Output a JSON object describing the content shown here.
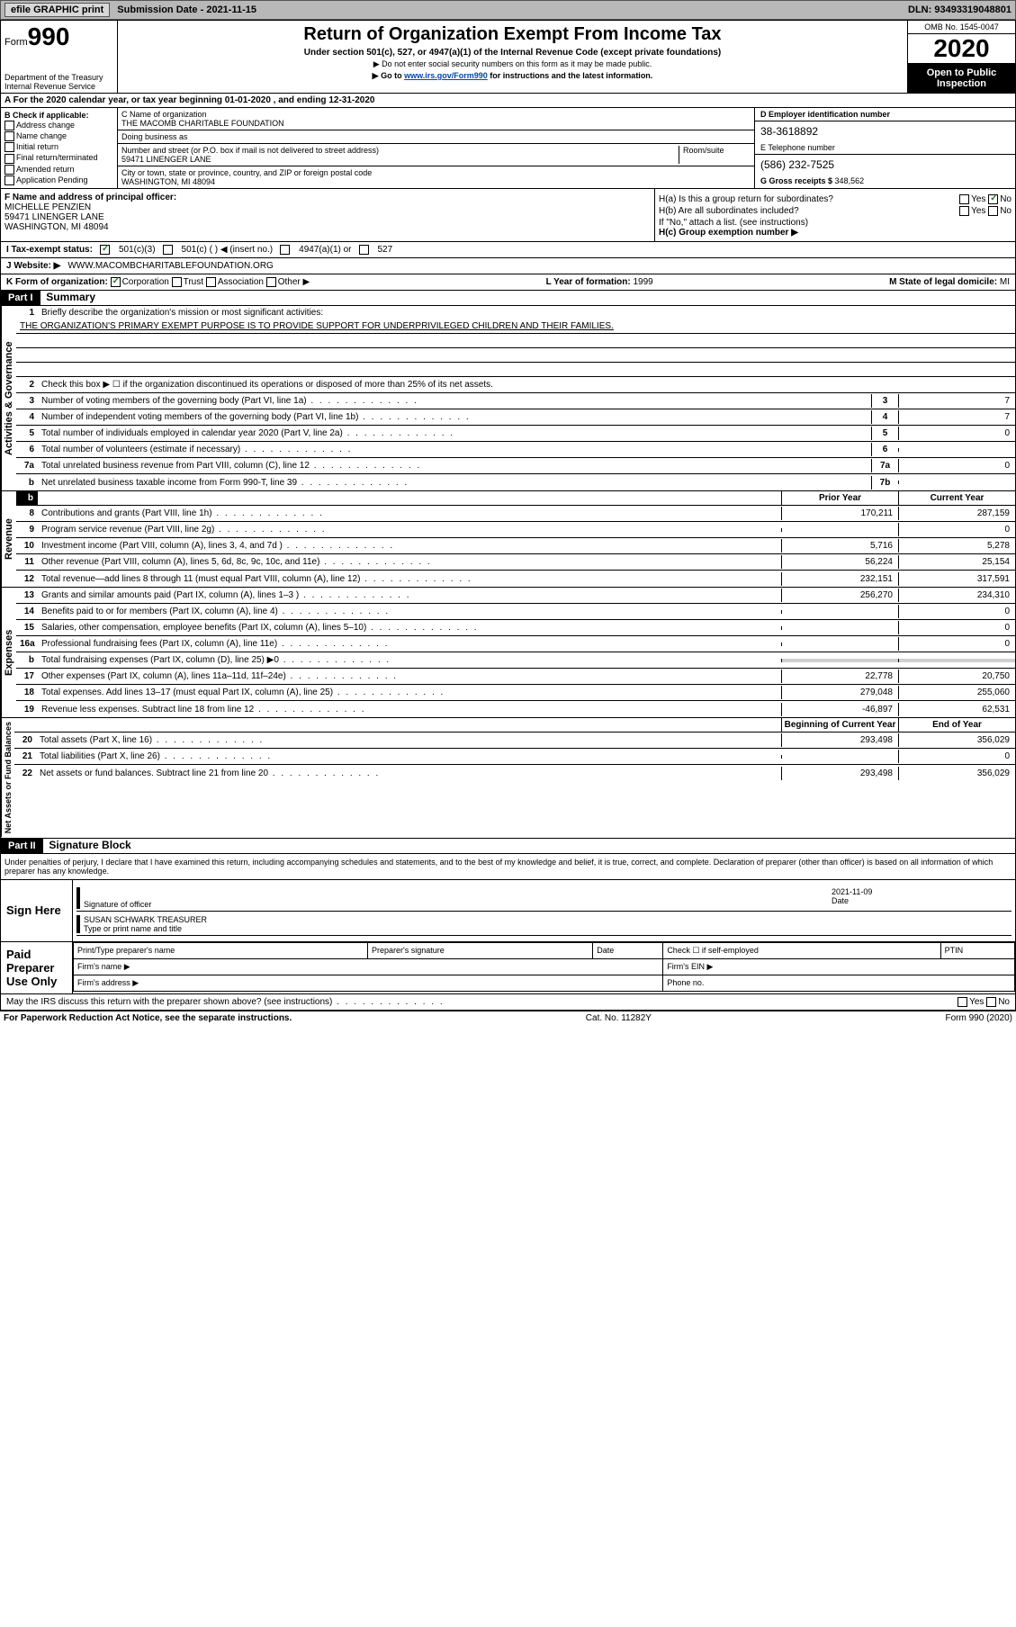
{
  "topbar": {
    "efile": "efile GRAPHIC print",
    "subdate_label": "Submission Date - ",
    "subdate": "2021-11-15",
    "dln_label": "DLN: ",
    "dln": "93493319048801"
  },
  "header": {
    "form_prefix": "Form",
    "form_num": "990",
    "title": "Return of Organization Exempt From Income Tax",
    "subtitle": "Under section 501(c), 527, or 4947(a)(1) of the Internal Revenue Code (except private foundations)",
    "note1": "▶ Do not enter social security numbers on this form as it may be made public.",
    "note2_prefix": "▶ Go to ",
    "note2_link": "www.irs.gov/Form990",
    "note2_suffix": " for instructions and the latest information.",
    "dept": "Department of the Treasury\nInternal Revenue Service",
    "omb": "OMB No. 1545-0047",
    "year": "2020",
    "inspection": "Open to Public Inspection"
  },
  "rowA": "A For the 2020 calendar year, or tax year beginning 01-01-2020   , and ending 12-31-2020",
  "colB": {
    "label": "B Check if applicable:",
    "items": [
      "Address change",
      "Name change",
      "Initial return",
      "Final return/terminated",
      "Amended return",
      "Application Pending"
    ]
  },
  "colC": {
    "name_label": "C Name of organization",
    "name": "THE MACOMB CHARITABLE FOUNDATION",
    "dba_label": "Doing business as",
    "dba": "",
    "street_label": "Number and street (or P.O. box if mail is not delivered to street address)",
    "room_label": "Room/suite",
    "street": "59471 LINENGER LANE",
    "city_label": "City or town, state or province, country, and ZIP or foreign postal code",
    "city": "WASHINGTON, MI  48094"
  },
  "colD": {
    "ein_label": "D Employer identification number",
    "ein": "38-3618892",
    "phone_label": "E Telephone number",
    "phone": "(586) 232-7525",
    "gross_label": "G Gross receipts $ ",
    "gross": "348,562"
  },
  "colF": {
    "label": "F  Name and address of principal officer:",
    "name": "MICHELLE PENZIEN",
    "addr1": "59471 LINENGER LANE",
    "addr2": "WASHINGTON, MI  48094"
  },
  "colH": {
    "a": "H(a)  Is this a group return for subordinates?",
    "a_yes": "Yes",
    "a_no": "No",
    "b": "H(b)  Are all subordinates included?",
    "b_yes": "Yes",
    "b_no": "No",
    "b_note": "If \"No,\" attach a list. (see instructions)",
    "c": "H(c)  Group exemption number ▶"
  },
  "rowI": {
    "label": "I   Tax-exempt status:",
    "c1": "501(c)(3)",
    "c2": "501(c) (  ) ◀ (insert no.)",
    "c3": "4947(a)(1) or",
    "c4": "527"
  },
  "rowJ": {
    "label": "J   Website: ▶",
    "val": "WWW.MACOMBCHARITABLEFOUNDATION.ORG"
  },
  "rowK": {
    "label": "K Form of organization:",
    "c1": "Corporation",
    "c2": "Trust",
    "c3": "Association",
    "c4": "Other ▶",
    "l_label": "L Year of formation: ",
    "l_val": "1999",
    "m_label": "M State of legal domicile: ",
    "m_val": "MI"
  },
  "part1": {
    "label": "Part I",
    "title": "Summary"
  },
  "governance": {
    "label": "Activities & Governance",
    "q1": "Briefly describe the organization's mission or most significant activities:",
    "mission": "THE ORGANIZATION'S PRIMARY EXEMPT PURPOSE IS TO PROVIDE SUPPORT FOR UNDERPRIVILEGED CHILDREN AND THEIR FAMILIES.",
    "q2": "Check this box ▶ ☐  if the organization discontinued its operations or disposed of more than 25% of its net assets.",
    "lines": [
      {
        "n": "3",
        "t": "Number of voting members of the governing body (Part VI, line 1a)",
        "b": "3",
        "v": "7"
      },
      {
        "n": "4",
        "t": "Number of independent voting members of the governing body (Part VI, line 1b)",
        "b": "4",
        "v": "7"
      },
      {
        "n": "5",
        "t": "Total number of individuals employed in calendar year 2020 (Part V, line 2a)",
        "b": "5",
        "v": "0"
      },
      {
        "n": "6",
        "t": "Total number of volunteers (estimate if necessary)",
        "b": "6",
        "v": ""
      },
      {
        "n": "7a",
        "t": "Total unrelated business revenue from Part VIII, column (C), line 12",
        "b": "7a",
        "v": "0"
      },
      {
        "n": "b",
        "t": "Net unrelated business taxable income from Form 990-T, line 39",
        "b": "7b",
        "v": ""
      }
    ]
  },
  "revenue": {
    "label": "Revenue",
    "h1": "Prior Year",
    "h2": "Current Year",
    "lines": [
      {
        "n": "8",
        "t": "Contributions and grants (Part VIII, line 1h)",
        "p": "170,211",
        "c": "287,159"
      },
      {
        "n": "9",
        "t": "Program service revenue (Part VIII, line 2g)",
        "p": "",
        "c": "0"
      },
      {
        "n": "10",
        "t": "Investment income (Part VIII, column (A), lines 3, 4, and 7d )",
        "p": "5,716",
        "c": "5,278"
      },
      {
        "n": "11",
        "t": "Other revenue (Part VIII, column (A), lines 5, 6d, 8c, 9c, 10c, and 11e)",
        "p": "56,224",
        "c": "25,154"
      },
      {
        "n": "12",
        "t": "Total revenue—add lines 8 through 11 (must equal Part VIII, column (A), line 12)",
        "p": "232,151",
        "c": "317,591"
      }
    ]
  },
  "expenses": {
    "label": "Expenses",
    "lines": [
      {
        "n": "13",
        "t": "Grants and similar amounts paid (Part IX, column (A), lines 1–3 )",
        "p": "256,270",
        "c": "234,310"
      },
      {
        "n": "14",
        "t": "Benefits paid to or for members (Part IX, column (A), line 4)",
        "p": "",
        "c": "0"
      },
      {
        "n": "15",
        "t": "Salaries, other compensation, employee benefits (Part IX, column (A), lines 5–10)",
        "p": "",
        "c": "0"
      },
      {
        "n": "16a",
        "t": "Professional fundraising fees (Part IX, column (A), line 11e)",
        "p": "",
        "c": "0"
      },
      {
        "n": "b",
        "t": "Total fundraising expenses (Part IX, column (D), line 25) ▶0",
        "p": "gray",
        "c": "gray"
      },
      {
        "n": "17",
        "t": "Other expenses (Part IX, column (A), lines 11a–11d, 11f–24e)",
        "p": "22,778",
        "c": "20,750"
      },
      {
        "n": "18",
        "t": "Total expenses. Add lines 13–17 (must equal Part IX, column (A), line 25)",
        "p": "279,048",
        "c": "255,060"
      },
      {
        "n": "19",
        "t": "Revenue less expenses. Subtract line 18 from line 12",
        "p": "-46,897",
        "c": "62,531"
      }
    ]
  },
  "netassets": {
    "label": "Net Assets or Fund Balances",
    "h1": "Beginning of Current Year",
    "h2": "End of Year",
    "lines": [
      {
        "n": "20",
        "t": "Total assets (Part X, line 16)",
        "p": "293,498",
        "c": "356,029"
      },
      {
        "n": "21",
        "t": "Total liabilities (Part X, line 26)",
        "p": "",
        "c": "0"
      },
      {
        "n": "22",
        "t": "Net assets or fund balances. Subtract line 21 from line 20",
        "p": "293,498",
        "c": "356,029"
      }
    ]
  },
  "part2": {
    "label": "Part II",
    "title": "Signature Block"
  },
  "perjury": "Under penalties of perjury, I declare that I have examined this return, including accompanying schedules and statements, and to the best of my knowledge and belief, it is true, correct, and complete. Declaration of preparer (other than officer) is based on all information of which preparer has any knowledge.",
  "sign": {
    "here": "Sign Here",
    "sig_label": "Signature of officer",
    "date_label": "Date",
    "date": "2021-11-09",
    "name": "SUSAN SCHWARK  TREASURER",
    "name_label": "Type or print name and title"
  },
  "paid": {
    "here": "Paid Preparer Use Only",
    "h1": "Print/Type preparer's name",
    "h2": "Preparer's signature",
    "h3": "Date",
    "h4": "Check ☐ if self-employed",
    "h5": "PTIN",
    "firm_name": "Firm's name   ▶",
    "firm_ein": "Firm's EIN ▶",
    "firm_addr": "Firm's address ▶",
    "phone": "Phone no."
  },
  "discuss": {
    "q": "May the IRS discuss this return with the preparer shown above? (see instructions)",
    "yes": "Yes",
    "no": "No"
  },
  "footer": {
    "l": "For Paperwork Reduction Act Notice, see the separate instructions.",
    "c": "Cat. No. 11282Y",
    "r": "Form 990 (2020)"
  }
}
